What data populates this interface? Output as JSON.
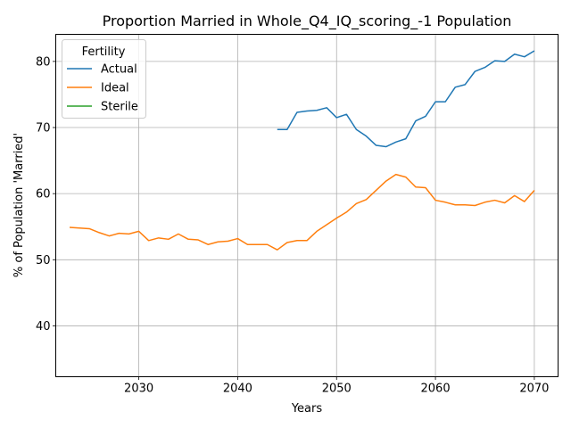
{
  "chart_data": {
    "type": "line",
    "title": "Proportion Married in Whole_Q4_IQ_scoring_-1 Population",
    "xlabel": "Years",
    "ylabel": "% of Population 'Married'",
    "xlim": [
      2021.6,
      2072.4
    ],
    "ylim": [
      32.3,
      84.1
    ],
    "xticks": [
      2030,
      2040,
      2050,
      2060,
      2070
    ],
    "yticks": [
      40,
      50,
      60,
      70,
      80
    ],
    "grid": true,
    "legend": {
      "title": "Fertility",
      "placement": "top-left"
    },
    "series": [
      {
        "name": "Actual",
        "color": "#1f77b4",
        "x": [
          2044,
          2045,
          2046,
          2047,
          2048,
          2049,
          2050,
          2051,
          2052,
          2053,
          2054,
          2055,
          2056,
          2057,
          2058,
          2059,
          2060,
          2061,
          2062,
          2063,
          2064,
          2065,
          2066,
          2067,
          2068,
          2069,
          2070
        ],
        "values": [
          69.7,
          69.7,
          72.3,
          72.5,
          72.6,
          73.0,
          71.5,
          72.0,
          69.7,
          68.7,
          67.3,
          67.1,
          67.8,
          68.3,
          71.0,
          71.7,
          73.9,
          73.9,
          76.1,
          76.5,
          78.5,
          79.1,
          80.1,
          80.0,
          81.1,
          80.7,
          81.6
        ]
      },
      {
        "name": "Ideal",
        "color": "#ff7f0e",
        "x": [
          2023,
          2024,
          2025,
          2026,
          2027,
          2028,
          2029,
          2030,
          2031,
          2032,
          2033,
          2034,
          2035,
          2036,
          2037,
          2038,
          2039,
          2040,
          2041,
          2042,
          2043,
          2044,
          2045,
          2046,
          2047,
          2048,
          2049,
          2050,
          2051,
          2052,
          2053,
          2054,
          2055,
          2056,
          2057,
          2058,
          2059,
          2060,
          2061,
          2062,
          2063,
          2064,
          2065,
          2066,
          2067,
          2068,
          2069,
          2070
        ],
        "values": [
          54.9,
          54.8,
          54.7,
          54.1,
          53.6,
          54.0,
          53.9,
          54.3,
          52.9,
          53.3,
          53.1,
          53.9,
          53.1,
          53.0,
          52.3,
          52.7,
          52.8,
          53.2,
          52.3,
          52.3,
          52.3,
          51.5,
          52.6,
          52.9,
          52.9,
          54.3,
          55.3,
          56.3,
          57.2,
          58.5,
          59.1,
          60.5,
          61.9,
          62.9,
          62.5,
          61.0,
          60.9,
          59.0,
          58.7,
          58.3,
          58.3,
          58.2,
          58.7,
          59.0,
          58.6,
          59.7,
          58.8,
          60.5
        ]
      },
      {
        "name": "Sterile",
        "color": "#2ca02c",
        "x": [],
        "values": []
      }
    ]
  }
}
